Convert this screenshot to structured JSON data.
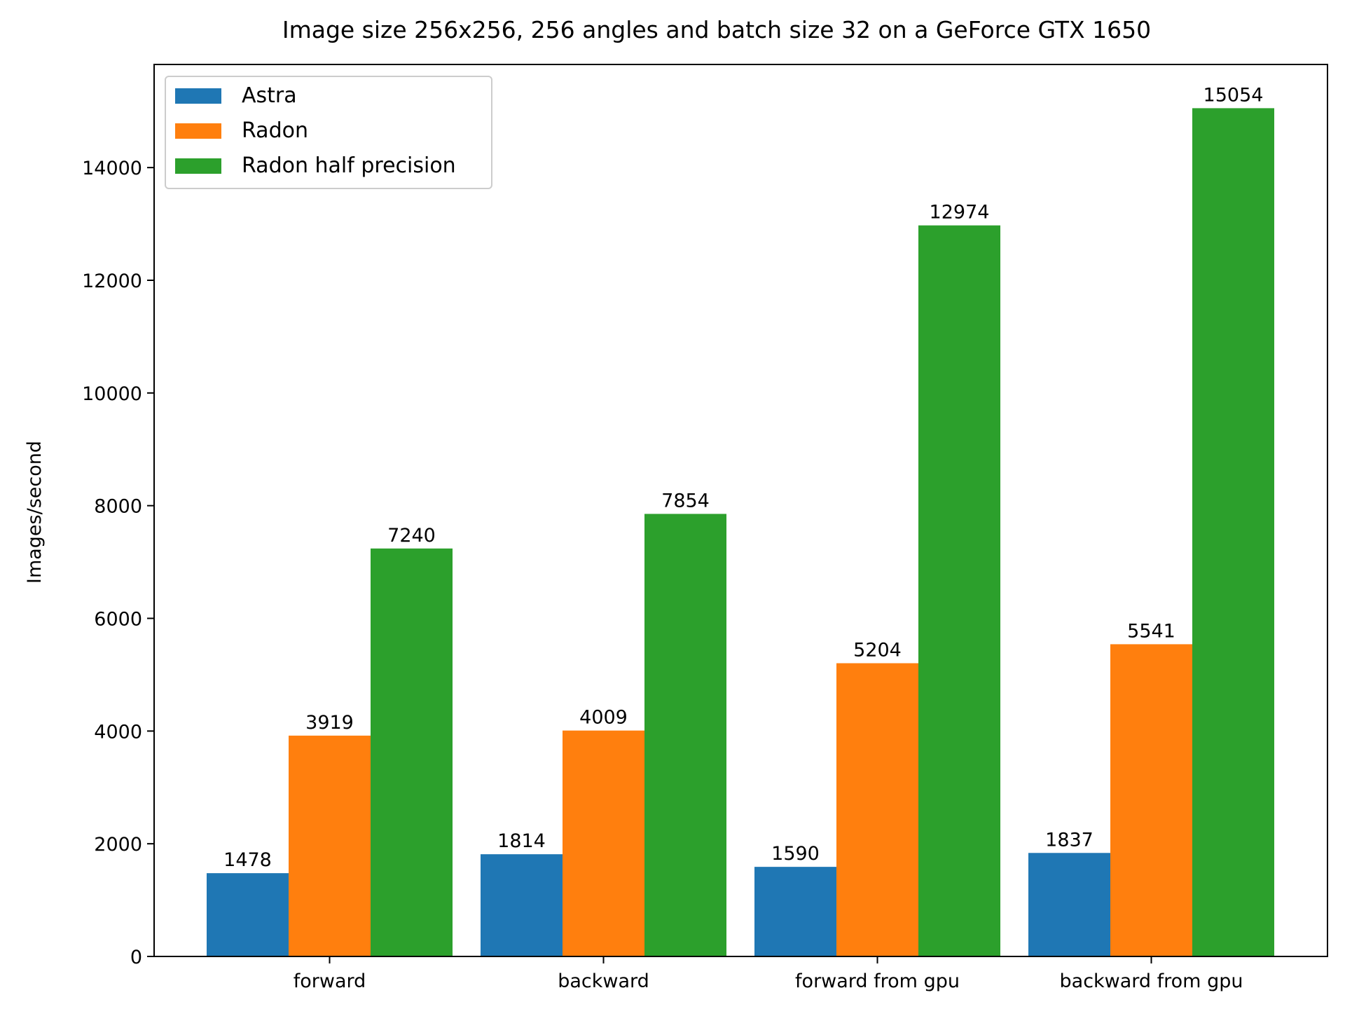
{
  "chart_data": {
    "type": "bar",
    "title": "Image size 256x256, 256 angles and batch size 32 on a GeForce GTX 1650",
    "xlabel": "",
    "ylabel": "Images/second",
    "ylim": [
      0,
      15830
    ],
    "yticks": [
      0,
      2000,
      4000,
      6000,
      8000,
      10000,
      12000,
      14000
    ],
    "categories": [
      "forward",
      "backward",
      "forward from gpu",
      "backward from gpu"
    ],
    "series": [
      {
        "name": "Astra",
        "color": "#1f77b4",
        "values": [
          1478,
          1814,
          1590,
          1837
        ]
      },
      {
        "name": "Radon",
        "color": "#ff7f0e",
        "values": [
          3919,
          4009,
          5204,
          5541
        ]
      },
      {
        "name": "Radon half precision",
        "color": "#2ca02c",
        "values": [
          7240,
          7854,
          12974,
          15054
        ]
      }
    ],
    "grid": false,
    "legend_position": "top-left"
  }
}
